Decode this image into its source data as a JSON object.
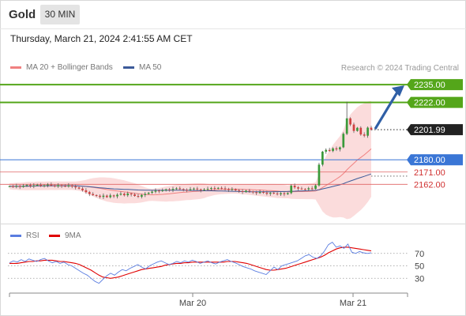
{
  "header": {
    "instrument": "Gold",
    "timeframe": "30 MIN",
    "datetime": "Thursday, March 21, 2024 2:41:55 AM CET",
    "copyright": "Research © 2024 Trading Central"
  },
  "colors": {
    "up_candle": "#3a9a3a",
    "down_candle": "#d04040",
    "bollinger": "#f08080",
    "ma50": "#3c5a99",
    "resistance": "#54a61a",
    "support": "#3a76d6",
    "minor_level": "#e06464",
    "current_price": "#222222",
    "rsi": "#5a7de0",
    "rsi_ma": "#e00000"
  },
  "chart_data": [
    {
      "type": "candlestick",
      "legend": [
        "MA 20 + Bollinger Bands",
        "MA 50"
      ],
      "x_ticks": [
        "Mar 20",
        "Mar 21"
      ],
      "levels": [
        {
          "value": 2235.0,
          "label": "2235.00",
          "kind": "resistance"
        },
        {
          "value": 2222.0,
          "label": "2222.00",
          "kind": "resistance"
        },
        {
          "value": 2201.99,
          "label": "2201.99",
          "kind": "current"
        },
        {
          "value": 2180.0,
          "label": "2180.00",
          "kind": "support"
        },
        {
          "value": 2171.0,
          "label": "2171.00",
          "kind": "minor"
        },
        {
          "value": 2162.0,
          "label": "2162.00",
          "kind": "minor"
        }
      ],
      "target_arrow": {
        "from": 2201.99,
        "to": 2235.0
      },
      "ylim": [
        2135,
        2242
      ],
      "close_prices": [
        2160.6,
        2160.3,
        2160.8,
        2160.1,
        2160.9,
        2161.5,
        2160.7,
        2161.2,
        2161.6,
        2160.9,
        2161.3,
        2161.8,
        2161.1,
        2160.6,
        2161.4,
        2160.9,
        2160.5,
        2161.2,
        2160.4,
        2159.7,
        2158.9,
        2157.6,
        2156.3,
        2154.9,
        2154.1,
        2153.6,
        2152.8,
        2153.7,
        2152.6,
        2153.9,
        2153.2,
        2154.4,
        2155.1,
        2154.0,
        2155.3,
        2154.6,
        2153.5,
        2152.9,
        2154.2,
        2155.0,
        2155.8,
        2156.6,
        2157.4,
        2157.0,
        2157.6,
        2158.3,
        2157.8,
        2158.6,
        2159.1,
        2158.5,
        2158.0,
        2157.7,
        2158.4,
        2158.9,
        2158.3,
        2157.6,
        2158.2,
        2158.7,
        2159.3,
        2158.8,
        2159.4,
        2159.0,
        2158.6,
        2157.9,
        2158.5,
        2157.6,
        2157.0,
        2156.4,
        2157.3,
        2156.7,
        2156.2,
        2155.6,
        2156.4,
        2155.9,
        2155.1,
        2155.8,
        2155.3,
        2154.7,
        2155.5,
        2154.8,
        2155.6,
        2161.0,
        2159.8,
        2158.9,
        2158.6,
        2158.3,
        2159.1,
        2158.7,
        2161.2,
        2176.4,
        2185.9,
        2187.2,
        2186.4,
        2188.3,
        2187.6,
        2189.1,
        2199.0,
        2210.3,
        2205.8,
        2201.1,
        2203.4,
        2198.5,
        2197.6,
        2203.5,
        2201.99
      ]
    },
    {
      "type": "line",
      "legend": [
        "RSI",
        "9MA"
      ],
      "y_ticks": [
        70,
        50,
        30
      ],
      "ylim": [
        10,
        90
      ],
      "rsi": [
        55,
        58,
        56,
        60,
        57,
        61,
        59,
        57,
        60,
        62,
        58,
        55,
        57,
        54,
        56,
        52,
        50,
        46,
        42,
        38,
        35,
        30,
        25,
        22,
        28,
        34,
        38,
        35,
        40,
        44,
        42,
        46,
        49,
        52,
        48,
        45,
        50,
        53,
        56,
        58,
        55,
        52,
        54,
        57,
        55,
        58,
        56,
        59,
        57,
        54,
        56,
        58,
        55,
        53,
        56,
        58,
        60,
        57,
        55,
        52,
        49,
        47,
        45,
        42,
        40,
        38,
        36,
        42,
        48,
        44,
        50,
        52,
        54,
        56,
        58,
        62,
        66,
        68,
        64,
        62,
        66,
        74,
        84,
        88,
        80,
        82,
        78,
        85,
        72,
        70,
        73,
        71,
        70,
        71
      ],
      "rsi_ma": [
        54,
        54,
        54,
        55,
        56,
        57,
        57,
        58,
        58,
        59,
        59,
        59,
        58,
        57,
        57,
        56,
        55,
        54,
        52,
        49,
        46,
        43,
        39,
        35,
        32,
        31,
        30,
        31,
        32,
        34,
        36,
        38,
        40,
        42,
        44,
        45,
        46,
        47,
        48,
        49,
        51,
        52,
        53,
        54,
        54,
        55,
        55,
        56,
        56,
        56,
        56,
        56,
        56,
        56,
        56,
        56,
        57,
        57,
        57,
        56,
        55,
        54,
        52,
        50,
        48,
        46,
        44,
        43,
        43,
        44,
        45,
        46,
        48,
        50,
        52,
        54,
        56,
        58,
        60,
        62,
        64,
        67,
        71,
        74,
        77,
        79,
        80,
        80,
        79,
        78,
        77,
        76,
        75,
        74
      ]
    }
  ]
}
